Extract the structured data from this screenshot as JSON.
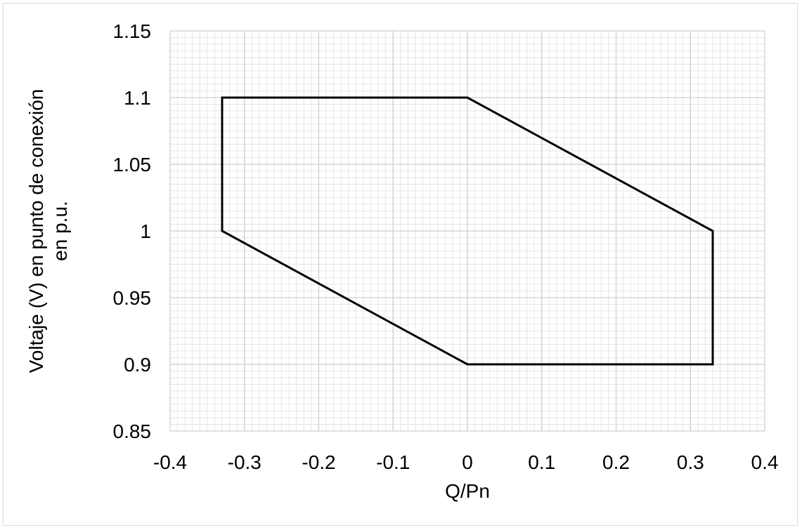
{
  "chart_data": {
    "type": "line",
    "title": "",
    "xlabel": "Q/Pn",
    "ylabel_lines": [
      "Voltaje (V) en punto de conexión",
      "en p.u."
    ],
    "xlim": [
      -0.4,
      0.4
    ],
    "ylim": [
      0.85,
      1.15
    ],
    "x_ticks": [
      -0.4,
      -0.3,
      -0.2,
      -0.1,
      0,
      0.1,
      0.2,
      0.3,
      0.4
    ],
    "x_tick_labels": [
      "-0.4",
      "-0.3",
      "-0.2",
      "-0.1",
      "0",
      "0.1",
      "0.2",
      "0.3",
      "0.4"
    ],
    "y_ticks": [
      0.85,
      0.9,
      0.95,
      1,
      1.05,
      1.1,
      1.15
    ],
    "y_tick_labels": [
      "0.85",
      "0.9",
      "0.95",
      "1",
      "1.05",
      "1.1",
      "1.15"
    ],
    "x_minor_step": 0.01,
    "y_minor_step": 0.005,
    "grid": true,
    "legend": "none",
    "series": [
      {
        "closed": true,
        "color": "#000000",
        "x": [
          -0.33,
          0,
          0.33,
          0.33,
          0,
          -0.33,
          -0.33
        ],
        "y": [
          1.1,
          1.1,
          1.0,
          0.9,
          0.9,
          1.0,
          1.1
        ]
      }
    ]
  }
}
